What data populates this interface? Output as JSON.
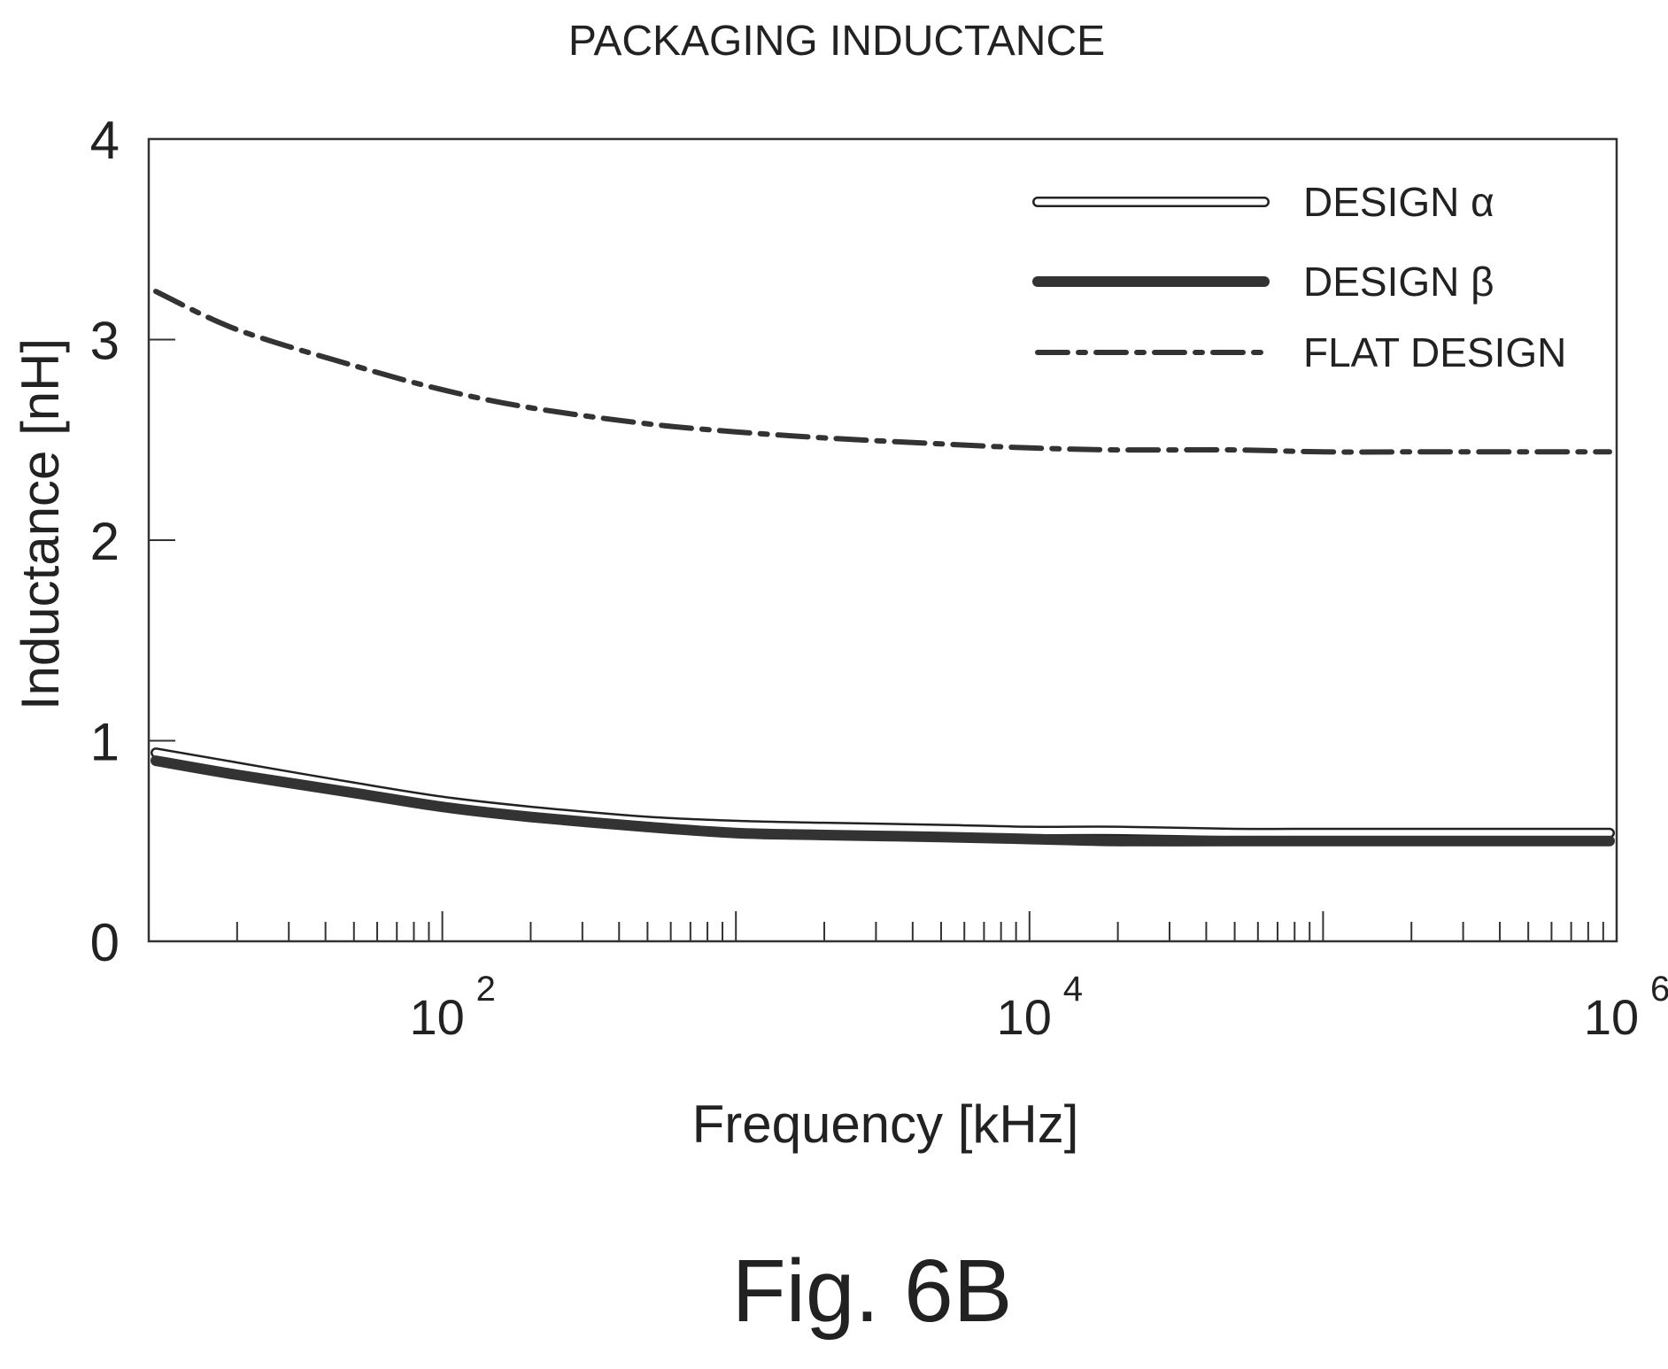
{
  "figure": {
    "caption": "Fig. 6B"
  },
  "chart_data": {
    "type": "line",
    "title": "PACKAGING INDUCTANCE",
    "xlabel": "Frequency [kHz]",
    "ylabel": "Inductance [nH]",
    "x_scale": "log",
    "xlim": [
      10,
      1000000
    ],
    "ylim": [
      0,
      4
    ],
    "x_ticks": [
      {
        "base": "10",
        "exp": "2",
        "value": 100
      },
      {
        "base": "10",
        "exp": "4",
        "value": 10000
      },
      {
        "base": "10",
        "exp": "6",
        "value": 1000000
      }
    ],
    "y_ticks": [
      {
        "label": "0",
        "value": 0
      },
      {
        "label": "1",
        "value": 1
      },
      {
        "label": "2",
        "value": 2
      },
      {
        "label": "3",
        "value": 3
      },
      {
        "label": "4",
        "value": 4
      }
    ],
    "grid": false,
    "legend_position": "top-right",
    "x": [
      10,
      20,
      50,
      100,
      200,
      500,
      1000,
      2000,
      5000,
      10000,
      20000,
      50000,
      100000,
      200000,
      500000,
      1000000
    ],
    "series": [
      {
        "name": "DESIGN α",
        "style": "hollow",
        "color": "#222222",
        "values": [
          0.94,
          0.87,
          0.77,
          0.7,
          0.65,
          0.6,
          0.58,
          0.57,
          0.56,
          0.55,
          0.55,
          0.54,
          0.54,
          0.54,
          0.54,
          0.54
        ]
      },
      {
        "name": "DESIGN β",
        "style": "thick",
        "color": "#333333",
        "values": [
          0.9,
          0.83,
          0.74,
          0.67,
          0.62,
          0.57,
          0.54,
          0.53,
          0.52,
          0.51,
          0.5,
          0.5,
          0.5,
          0.5,
          0.5,
          0.5
        ]
      },
      {
        "name": "FLAT DESIGN",
        "style": "dash-dot",
        "color": "#333333",
        "values": [
          3.24,
          3.05,
          2.87,
          2.75,
          2.66,
          2.58,
          2.54,
          2.51,
          2.48,
          2.46,
          2.45,
          2.45,
          2.44,
          2.44,
          2.44,
          2.44
        ]
      }
    ]
  }
}
